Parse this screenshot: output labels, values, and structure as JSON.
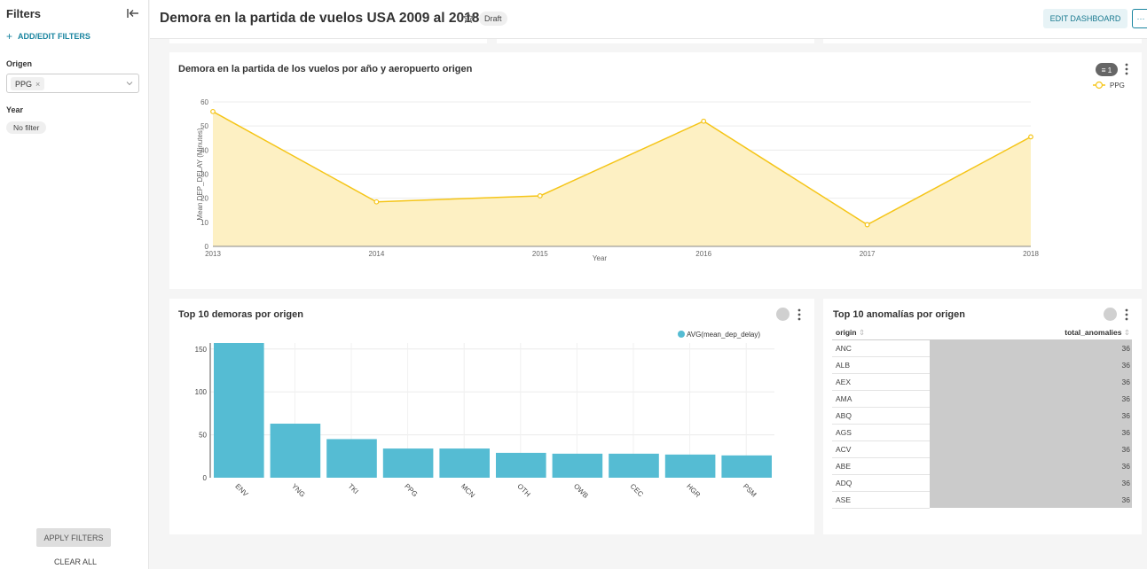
{
  "sidebar": {
    "title": "Filters",
    "add_filters": "ADD/EDIT FILTERS",
    "origen_label": "Origen",
    "origen_tag": "PPG",
    "year_label": "Year",
    "year_value": "No filter",
    "apply": "APPLY FILTERS",
    "clear": "CLEAR ALL"
  },
  "header": {
    "title": "Demora en la partida de vuelos USA 2009 al 2018",
    "status": "Draft",
    "edit": "EDIT DASHBOARD",
    "more": "···"
  },
  "line_card": {
    "title": "Demora en la partida de los vuelos por año y aeropuerto origen",
    "filter_count": "1",
    "chart_data": {
      "type": "area",
      "x": [
        2013,
        2014,
        2015,
        2016,
        2017,
        2018
      ],
      "y": [
        56,
        18.5,
        21,
        52,
        9,
        45.5
      ],
      "series": [
        {
          "name": "PPG"
        }
      ],
      "xlabel": "Year",
      "ylabel": "Mean DEP_DELAY (Minutes)",
      "ylim": [
        0,
        60
      ],
      "yticks": [
        0,
        10,
        20,
        30,
        40,
        50,
        60
      ],
      "grid": true,
      "legend": "top-right",
      "color": "#f5c518",
      "fill": "#fdf0c3"
    }
  },
  "bar_card": {
    "title": "Top 10 demoras por origen",
    "chart_data": {
      "type": "bar",
      "categories": [
        "ENV",
        "YNG",
        "TKI",
        "PPG",
        "MCN",
        "OTH",
        "OWB",
        "CEC",
        "HGR",
        "PSM"
      ],
      "values": [
        157,
        63,
        45,
        34,
        34,
        29,
        28,
        28,
        27,
        26
      ],
      "series": [
        {
          "name": "AVG(mean_dep_delay)"
        }
      ],
      "yticks": [
        0,
        50,
        100,
        150
      ],
      "ylim": [
        0,
        157
      ],
      "grid": true,
      "legend": "top-right",
      "color": "#55bcd3"
    }
  },
  "table_card": {
    "title": "Top 10 anomalías por origen",
    "col_origin": "origin",
    "col_total": "total_anomalies",
    "rows": [
      {
        "origin": "ANC",
        "total": "36"
      },
      {
        "origin": "ALB",
        "total": "36"
      },
      {
        "origin": "AEX",
        "total": "36"
      },
      {
        "origin": "AMA",
        "total": "36"
      },
      {
        "origin": "ABQ",
        "total": "36"
      },
      {
        "origin": "AGS",
        "total": "36"
      },
      {
        "origin": "ACV",
        "total": "36"
      },
      {
        "origin": "ABE",
        "total": "36"
      },
      {
        "origin": "ADQ",
        "total": "36"
      },
      {
        "origin": "ASE",
        "total": "36"
      }
    ]
  }
}
